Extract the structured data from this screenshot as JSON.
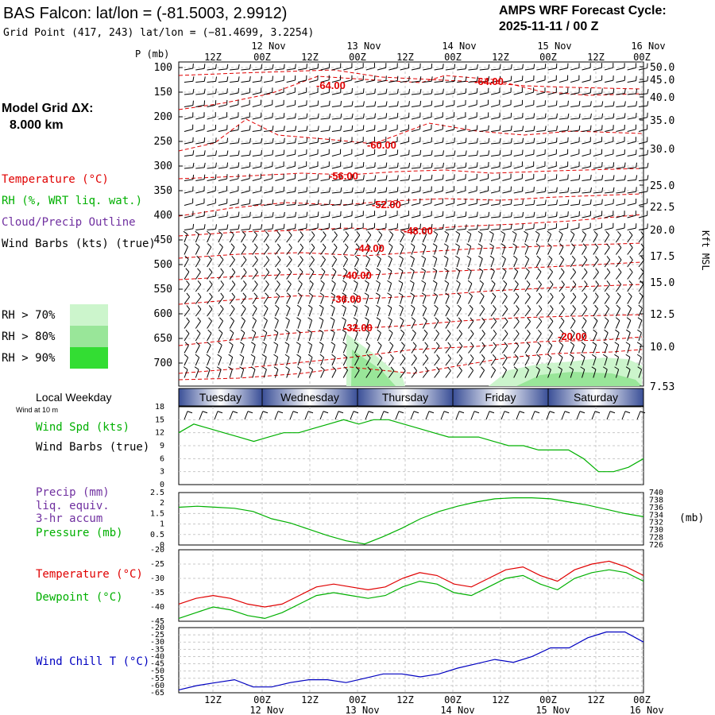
{
  "header": {
    "title": "BAS Falcon:  lat/lon = (-81.5003, 2.9912)",
    "grid_point": "Grid Point (417, 243) lat/lon = (−81.4699, 3.2254)",
    "cycle_label": "AMPS WRF Forecast Cycle:",
    "cycle_value": "2025-11-11 / 00  Z"
  },
  "side_labels": {
    "model_grid": "Model Grid ΔX:",
    "model_grid_value": "8.000 km",
    "p_label": "P (mb)",
    "kft_label": "Kft MSL",
    "local_weekday": "Local Weekday",
    "wind_at": "Wind at 10 m",
    "rh_levels": [
      "RH > 70%",
      "RH > 80%",
      "RH > 90%"
    ]
  },
  "colors": {
    "temperature": "#e00000",
    "rh": "#00b000",
    "cloud": "#7030a0",
    "wind_chill": "#0000c0",
    "rh70": "#ccf5cc",
    "rh80": "#99e699",
    "rh90": "#33dd33"
  },
  "time_axis": {
    "top_hours": [
      "12Z",
      "00Z",
      "12Z",
      "00Z",
      "12Z",
      "00Z",
      "12Z",
      "00Z",
      "12Z",
      "00Z"
    ],
    "top_dates": [
      "12 Nov",
      "13 Nov",
      "14 Nov",
      "15 Nov",
      "16 Nov"
    ],
    "days": [
      "Tuesday",
      "Wednesday",
      "Thursday",
      "Friday",
      "Saturday"
    ],
    "bottom_hours": [
      "12Z",
      "00Z",
      "12Z",
      "00Z",
      "12Z",
      "00Z",
      "12Z",
      "00Z",
      "12Z",
      "00Z"
    ],
    "bottom_dates": [
      "12 Nov",
      "13 Nov",
      "14 Nov",
      "15 Nov",
      "16 Nov"
    ]
  },
  "chart_data": [
    {
      "type": "line",
      "name": "vertical-profile",
      "legend": [
        "Temperature (°C)",
        "RH (%, WRT liq. wat.)",
        "Cloud/Precip Outline",
        "Wind Barbs (kts) (true)"
      ],
      "y_left_ticks": [
        "100",
        "150",
        "200",
        "250",
        "300",
        "350",
        "400",
        "450",
        "500",
        "550",
        "600",
        "650",
        "700"
      ],
      "y_right_ticks": [
        "50.0",
        "45.0",
        "40.0",
        "35.0",
        "30.0",
        "25.0",
        "22.5",
        "20.0",
        "17.5",
        "15.0",
        "12.5",
        "10.0",
        "7.53"
      ],
      "isotherm_labels": [
        "-64.00",
        "-64.00",
        "-60.00",
        "-56.00",
        "-52.00",
        "-48.00",
        "-44.00",
        "-40.00",
        "-36.00",
        "-32.00",
        "-20.00"
      ]
    },
    {
      "type": "line",
      "name": "wind-speed",
      "legend": [
        "Wind Spd (kts)",
        "Wind Barbs (true)"
      ],
      "y_ticks": [
        "18",
        "15",
        "12",
        "9",
        "6",
        "3",
        "0"
      ],
      "ylim": [
        0,
        18
      ],
      "series": [
        {
          "name": "Wind Spd (kts)",
          "values": [
            12,
            14,
            13,
            12,
            11,
            10,
            11,
            12,
            12,
            13,
            14,
            15,
            14,
            15,
            15,
            14,
            13,
            12,
            11,
            11,
            11,
            10,
            9,
            9,
            8,
            8,
            8,
            6,
            3,
            3,
            4,
            6
          ]
        }
      ]
    },
    {
      "type": "line",
      "name": "precip-pressure",
      "legend": [
        "Precip (mm)",
        "liq. equiv.",
        "3-hr accum",
        "Pressure (mb)"
      ],
      "y_ticks": [
        "2.5",
        "2",
        "1.5",
        "1",
        "0.5",
        "0"
      ],
      "y_right_ticks": [
        "740",
        "738",
        "736",
        "734",
        "732",
        "730",
        "728",
        "726"
      ],
      "y_right_unit": "(mb)",
      "ylim": [
        0,
        2.5
      ],
      "series": [
        {
          "name": "Pressure (mb)",
          "values": [
            1.8,
            1.85,
            1.8,
            1.75,
            1.6,
            1.25,
            1.05,
            0.75,
            0.45,
            0.2,
            0.05,
            0.4,
            0.8,
            1.25,
            1.6,
            1.85,
            2.05,
            2.2,
            2.25,
            2.25,
            2.2,
            2.05,
            1.9,
            1.7,
            1.5,
            1.35
          ]
        }
      ]
    },
    {
      "type": "line",
      "name": "temperature-dewpoint",
      "legend": [
        "Temperature (°C)",
        "Dewpoint (°C)"
      ],
      "y_ticks": [
        "-20",
        "-25",
        "-30",
        "-35",
        "-40",
        "-45"
      ],
      "ylim": [
        -45,
        -20
      ],
      "series": [
        {
          "name": "Temperature (°C)",
          "values": [
            -39,
            -37,
            -36,
            -37,
            -39,
            -40,
            -39,
            -36,
            -33,
            -32,
            -33,
            -34,
            -33,
            -30,
            -28,
            -29,
            -32,
            -33,
            -30,
            -27,
            -26,
            -29,
            -31,
            -27,
            -25,
            -24,
            -26,
            -29
          ]
        },
        {
          "name": "Dewpoint (°C)",
          "values": [
            -44,
            -42,
            -40,
            -41,
            -43,
            -44,
            -42,
            -39,
            -36,
            -35,
            -36,
            -37,
            -36,
            -33,
            -31,
            -32,
            -35,
            -36,
            -33,
            -30,
            -29,
            -32,
            -34,
            -30,
            -28,
            -27,
            -28,
            -31
          ]
        }
      ]
    },
    {
      "type": "line",
      "name": "wind-chill",
      "legend": [
        "Wind Chill T (°C)"
      ],
      "y_ticks": [
        "-20",
        "-25",
        "-30",
        "-35",
        "-40",
        "-45",
        "-50",
        "-55",
        "-60",
        "-65"
      ],
      "ylim": [
        -65,
        -20
      ],
      "series": [
        {
          "name": "Wind Chill T (°C)",
          "values": [
            -63,
            -60,
            -58,
            -56,
            -61,
            -61,
            -58,
            -56,
            -56,
            -58,
            -55,
            -52,
            -52,
            -54,
            -52,
            -48,
            -45,
            -42,
            -44,
            -40,
            -34,
            -34,
            -27,
            -23,
            -23,
            -30
          ]
        }
      ]
    }
  ]
}
